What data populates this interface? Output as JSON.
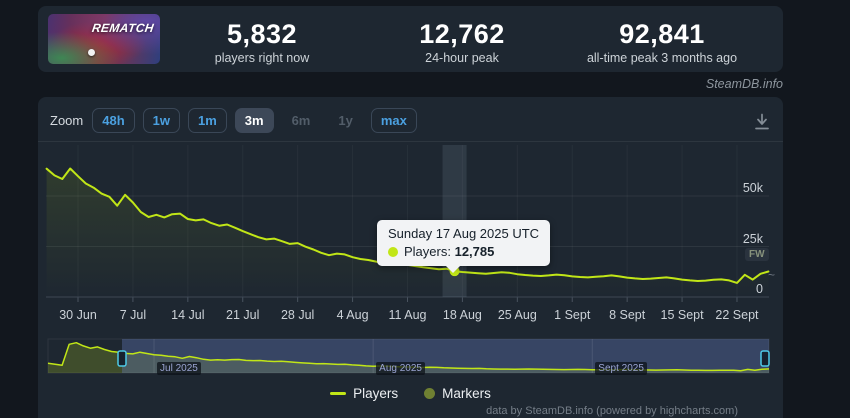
{
  "header": {
    "capsule_title": "REMATCH",
    "stats": [
      {
        "value": "5,832",
        "label": "players right now"
      },
      {
        "value": "12,762",
        "label": "24-hour peak"
      },
      {
        "value": "92,841",
        "label": "all-time peak 3 months ago"
      }
    ],
    "watermark": "SteamDB.info"
  },
  "toolbar": {
    "zoom_label": "Zoom",
    "buttons": [
      {
        "label": "48h",
        "state": "enabled"
      },
      {
        "label": "1w",
        "state": "enabled"
      },
      {
        "label": "1m",
        "state": "enabled"
      },
      {
        "label": "3m",
        "state": "selected"
      },
      {
        "label": "6m",
        "state": "disabled"
      },
      {
        "label": "1y",
        "state": "disabled"
      },
      {
        "label": "max",
        "state": "enabled"
      }
    ]
  },
  "chart_data": {
    "type": "line",
    "title": "",
    "xlabel": "",
    "ylabel": "",
    "ylim": [
      0,
      75000
    ],
    "grid": true,
    "legend_position": "bottom",
    "x_tick_labels": [
      "30 Jun",
      "7 Jul",
      "14 Jul",
      "21 Jul",
      "28 Jul",
      "4 Aug",
      "11 Aug",
      "18 Aug",
      "25 Aug",
      "1 Sept",
      "8 Sept",
      "15 Sept",
      "22 Sept"
    ],
    "y_ticks": [
      {
        "value": 0,
        "label": "0"
      },
      {
        "value": 25000,
        "label": "25k"
      },
      {
        "value": 50000,
        "label": "50k"
      }
    ],
    "series": [
      {
        "name": "Players",
        "color": "#c1e617",
        "values": [
          63500,
          60200,
          58400,
          63600,
          59800,
          56200,
          54100,
          51200,
          49600,
          45200,
          50600,
          46800,
          42100,
          39600,
          40700,
          39400,
          41000,
          41300,
          38600,
          37900,
          38400,
          36600,
          35300,
          35900,
          34300,
          32600,
          31100,
          29600,
          28500,
          28900,
          27600,
          26300,
          26700,
          24900,
          23500,
          21900,
          20700,
          21500,
          21100,
          19700,
          18800,
          18300,
          17500,
          16900,
          17600,
          17100,
          15900,
          15300,
          14700,
          14200,
          13700,
          14000,
          12785,
          12400,
          12100,
          11800,
          11500,
          11900,
          12300,
          12000,
          11300,
          10900,
          10600,
          10400,
          10700,
          11100,
          10800,
          10200,
          9900,
          9700,
          10000,
          10300,
          10700,
          10200,
          9600,
          9200,
          8900,
          9100,
          9400,
          9700,
          9200,
          8600,
          8200,
          7900,
          8100,
          8500,
          8700,
          8200,
          7000,
          11000,
          8600,
          11500,
          12600
        ]
      }
    ],
    "hover": {
      "index": 52,
      "title": "Sunday 17 Aug 2025 UTC",
      "series_label": "Players:",
      "value": "12,785"
    },
    "flag_label": "FW",
    "partial_mark": "~",
    "navigator": {
      "ylim": [
        0,
        95000
      ],
      "month_labels": [
        "Jul 2025",
        "Aug 2025",
        "Sept 2025"
      ],
      "month_label_indices": [
        15,
        46,
        77
      ],
      "values": [
        30000,
        27000,
        24000,
        88000,
        92841,
        83000,
        76000,
        80000,
        72000,
        66000,
        63500,
        60200,
        58400,
        63600,
        59800,
        56200,
        54100,
        51200,
        49600,
        45200,
        50600,
        46800,
        42100,
        39600,
        40700,
        39400,
        41000,
        41300,
        38600,
        37900,
        38400,
        36600,
        35300,
        35900,
        34300,
        32600,
        31100,
        29600,
        28500,
        28900,
        27600,
        26300,
        26700,
        24900,
        23500,
        21900,
        20700,
        21500,
        21100,
        19700,
        18800,
        18300,
        17500,
        16900,
        17600,
        17100,
        15900,
        15300,
        14700,
        14200,
        13700,
        14000,
        12785,
        12400,
        12100,
        11800,
        11500,
        11900,
        12300,
        12000,
        11300,
        10900,
        10600,
        10400,
        10700,
        11100,
        10800,
        10200,
        9900,
        9700,
        10000,
        10300,
        10700,
        10200,
        9600,
        9200,
        8900,
        9100,
        9400,
        9700,
        9200,
        8600,
        8200,
        7900,
        8100,
        8500,
        8700,
        8200,
        7000,
        11000,
        8600,
        11500,
        12600
      ]
    }
  },
  "legend": {
    "items": [
      {
        "label": "Players",
        "color": "#c1e617",
        "shape": "line"
      },
      {
        "label": "Markers",
        "color": "#6f8032",
        "shape": "circle"
      }
    ]
  },
  "footer": {
    "credit": "data by SteamDB.info (powered by highcharts.com)"
  }
}
